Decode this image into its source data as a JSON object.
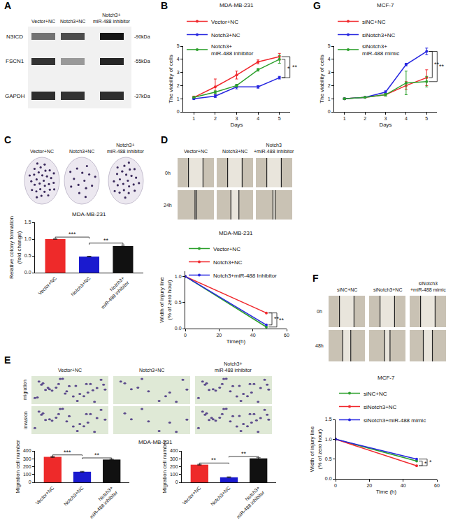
{
  "panel_labels": [
    "A",
    "B",
    "C",
    "D",
    "E",
    "F",
    "G"
  ],
  "blot": {
    "panel": "A",
    "columns": [
      "Vector+NC",
      "Notch3+NC",
      "Notch3+\nmiR-488 inhibitor"
    ],
    "rows": [
      {
        "protein": "N3ICD",
        "size": "-90kDa"
      },
      {
        "protein": "FSCN1",
        "size": "-55kDa"
      },
      {
        "protein": "GAPDH",
        "size": "-37kDa"
      }
    ]
  },
  "image_grids": [
    {
      "panel": "C",
      "columns": [
        "Vector+NC",
        "Notch3+NC",
        "Notch3+\nmiR-488 inhibitor"
      ],
      "rows": []
    },
    {
      "panel": "D",
      "columns": [
        "Vector+NC",
        "Notch3+NC",
        "Notch3\n+miR-488 Inhibitor"
      ],
      "rows": [
        "0h",
        "24h"
      ]
    },
    {
      "panel": "E",
      "columns": [
        "Vector+NC",
        "Notch3+NC",
        "Notch3+\nmiR-488 inhibitor"
      ],
      "rows": [
        "migration",
        "invasion"
      ]
    },
    {
      "panel": "F",
      "columns": [
        "siNC+NC",
        "siNotch3+NC",
        "siNotch3\n+miR-488 mimic"
      ],
      "rows": [
        "0h",
        "48h"
      ]
    }
  ],
  "chart_data": [
    {
      "panel": "B",
      "type": "line",
      "title": "MDA-MB-231",
      "x_label": "Days",
      "y_label": "The viability of cells",
      "x": [
        1,
        2,
        3,
        4,
        5
      ],
      "xlim": [
        0.5,
        5.5
      ],
      "xticks": [
        1,
        2,
        3,
        4,
        5
      ],
      "ylim": [
        0,
        5
      ],
      "yticks": [
        0,
        1,
        2,
        3,
        4,
        5
      ],
      "grid": false,
      "legend": "top left",
      "series": [
        {
          "name": "Vector+NC",
          "color": "#f0282d",
          "values": [
            1.1,
            1.9,
            2.8,
            3.8,
            4.2
          ],
          "errors": [
            0.1,
            0.6,
            0.3,
            0.15,
            0.25
          ]
        },
        {
          "name": "Notch3+NC",
          "color": "#2626e0",
          "values": [
            1.0,
            1.2,
            1.9,
            1.9,
            2.6
          ],
          "errors": [
            0.05,
            0.1,
            0.15,
            0.1,
            0.1
          ]
        },
        {
          "name": "Notch3+\nmiR-488 inhibitor",
          "color": "#2ca02c",
          "values": [
            1.1,
            1.5,
            2.0,
            3.2,
            4.0
          ],
          "errors": [
            0.05,
            0.1,
            0.1,
            0.1,
            0.3
          ]
        }
      ],
      "significance": [
        {
          "between": [
            "Notch3+\nmiR-488 inhibitor",
            "Notch3+NC"
          ],
          "text": "*"
        },
        {
          "between": [
            "Vector+NC",
            "Notch3+NC"
          ],
          "text": "**"
        }
      ]
    },
    {
      "panel": "G",
      "type": "line",
      "title": "MCF-7",
      "x_label": "Days",
      "y_label": "The viability of cells",
      "x": [
        1,
        2,
        3,
        4,
        5
      ],
      "xlim": [
        0.5,
        5.5
      ],
      "xticks": [
        1,
        2,
        3,
        4,
        5
      ],
      "ylim": [
        0,
        5
      ],
      "yticks": [
        0,
        1,
        2,
        3,
        4,
        5
      ],
      "grid": false,
      "legend": "top left",
      "series": [
        {
          "name": "siNC+NC",
          "color": "#f0282d",
          "values": [
            1.0,
            1.1,
            1.3,
            2.0,
            2.6
          ],
          "errors": [
            0.05,
            0.05,
            0.1,
            0.3,
            0.6
          ]
        },
        {
          "name": "siNotch3+NC",
          "color": "#2626e0",
          "values": [
            1.0,
            1.1,
            1.5,
            3.6,
            4.6
          ],
          "errors": [
            0.05,
            0.05,
            0.1,
            0.1,
            0.25
          ]
        },
        {
          "name": "siNotch3+\nmiR-488 mimic",
          "color": "#2ca02c",
          "values": [
            1.0,
            1.1,
            1.3,
            2.2,
            2.3
          ],
          "errors": [
            0.05,
            0.05,
            0.1,
            0.9,
            0.4
          ]
        }
      ],
      "significance": [
        {
          "between": [
            "siNotch3+NC",
            "siNC+NC"
          ],
          "text": "**"
        },
        {
          "between": [
            "siNotch3+NC",
            "siNotch3+\nmiR-488 mimic"
          ],
          "text": "**"
        }
      ]
    },
    {
      "panel": "C",
      "type": "bar",
      "title": "MDA-MB-231",
      "y_label": "Relative colony formation\n(fold change)",
      "categories": [
        "Vector+NC",
        "Notch3+NC",
        "Notch3+\nmiR-488 inhibitor"
      ],
      "values": [
        1.0,
        0.48,
        0.79
      ],
      "errors": [
        0,
        0.01,
        0.03
      ],
      "colors": [
        "#ee2a2a",
        "#1a1acf",
        "#111111"
      ],
      "ylim": [
        0,
        1.5
      ],
      "yticks": [
        {
          "value": 0,
          "label": "0.0"
        },
        {
          "value": 0.5,
          "label": "0.5"
        },
        {
          "value": 1,
          "label": "1.0"
        },
        {
          "value": 1.5,
          "label": "1.5"
        }
      ],
      "grid": false,
      "significance": [
        {
          "between": [
            "Vector+NC",
            "Notch3+NC"
          ],
          "text": "***"
        },
        {
          "between": [
            "Notch3+NC",
            "Notch3+\nmiR-488 inhibitor"
          ],
          "text": "**"
        }
      ]
    },
    {
      "panel": "D",
      "type": "line",
      "title": "MDA-MB-231",
      "x_label": "Time(h)",
      "y_label": "Width of injury line\n(% of zero hour)",
      "x": [
        0,
        48
      ],
      "xlim": [
        0,
        60
      ],
      "xticks": [
        0,
        20,
        40,
        60
      ],
      "ylim": [
        0,
        1.1
      ],
      "yticks": [
        {
          "value": 0,
          "label": "0.0"
        },
        {
          "value": 0.5,
          "label": "0.5"
        },
        {
          "value": 1,
          "label": "1.0"
        }
      ],
      "grid": false,
      "legend": "top left",
      "series": [
        {
          "name": "Vector+NC",
          "color": "#2ca02c",
          "values": [
            1.0,
            0.03
          ]
        },
        {
          "name": "Notch3+NC",
          "color": "#f0282d",
          "values": [
            1.0,
            0.3
          ]
        },
        {
          "name": "Notch3+miR-488 Inhibitor",
          "color": "#2626e0",
          "values": [
            1.0,
            0.07
          ]
        }
      ],
      "significance": [
        {
          "between": [
            "Notch3+NC",
            "Notch3+miR-488 Inhibitor"
          ],
          "text": "**"
        },
        {
          "between": [
            "Notch3+NC",
            "Vector+NC"
          ],
          "text": "**"
        }
      ]
    },
    {
      "panel": "E",
      "type": "bar",
      "title": "MDA-MB-231",
      "y_label": "Migration cell number",
      "categories": [
        "Vector+NC",
        "Notch3+NC",
        "Notch3+\nmiR-488 inhibitor"
      ],
      "values": [
        325,
        135,
        290
      ],
      "errors": [
        8,
        5,
        5
      ],
      "colors": [
        "#ee2a2a",
        "#1a1acf",
        "#111111"
      ],
      "ylim": [
        0,
        400
      ],
      "yticks": [
        0,
        100,
        200,
        300,
        400
      ],
      "grid": false,
      "significance": [
        {
          "between": [
            "Vector+NC",
            "Notch3+NC"
          ],
          "text": "***"
        },
        {
          "between": [
            "Notch3+NC",
            "Notch3+\nmiR-488 inhibitor"
          ],
          "text": "**"
        }
      ]
    },
    {
      "panel": "E",
      "type": "bar",
      "y_label": "Migration cell number",
      "categories": [
        "Vector+NC",
        "Notch3+NC",
        "Notch3+\nmiR-488 inhibitor"
      ],
      "values": [
        225,
        65,
        305
      ],
      "errors": [
        5,
        5,
        8
      ],
      "colors": [
        "#ee2a2a",
        "#1a1acf",
        "#111111"
      ],
      "ylim": [
        0,
        400
      ],
      "yticks": [
        0,
        100,
        200,
        300,
        400
      ],
      "grid": false,
      "significance": [
        {
          "between": [
            "Vector+NC",
            "Notch3+NC"
          ],
          "text": "**"
        },
        {
          "between": [
            "Notch3+NC",
            "Notch3+\nmiR-488 inhibitor"
          ],
          "text": "**"
        }
      ]
    },
    {
      "panel": "F",
      "type": "line",
      "title": "MCF-7",
      "x_label": "Time (h)",
      "y_label": "Width of injury line\n(% of zero hour)",
      "x": [
        0,
        48
      ],
      "xlim": [
        0,
        60
      ],
      "xticks": [
        0,
        20,
        40,
        60
      ],
      "ylim": [
        0,
        1.5
      ],
      "yticks": [
        {
          "value": 0,
          "label": "0.0"
        },
        {
          "value": 0.5,
          "label": "0.5"
        },
        {
          "value": 1,
          "label": "1.0"
        },
        {
          "value": 1.5,
          "label": "1.5"
        }
      ],
      "grid": false,
      "legend": "top left",
      "series": [
        {
          "name": "siNC+NC",
          "color": "#2ca02c",
          "values": [
            1.0,
            0.45
          ]
        },
        {
          "name": "siNotch3+NC",
          "color": "#f0282d",
          "values": [
            1.0,
            0.33
          ]
        },
        {
          "name": "siNotch3+miR-488 mimic",
          "color": "#2626e0",
          "values": [
            1.0,
            0.5
          ]
        }
      ],
      "significance": [
        {
          "between": [
            "siNotch3+NC",
            "siNC+NC"
          ],
          "text": "*"
        },
        {
          "between": [
            "siNotch3+NC",
            "siNotch3+miR-488 mimic"
          ],
          "text": "*"
        }
      ]
    }
  ]
}
